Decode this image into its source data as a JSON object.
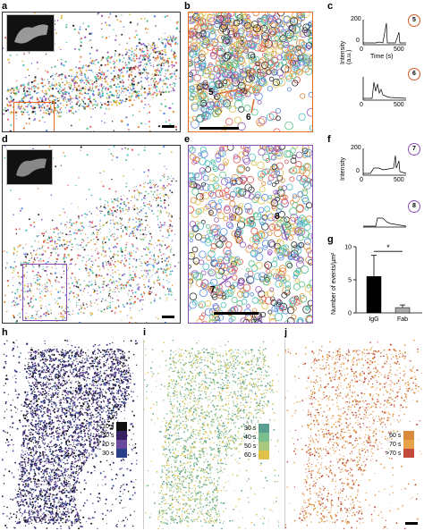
{
  "panels": {
    "a": "a",
    "b": "b",
    "c": "c",
    "d": "d",
    "e": "e",
    "f": "f",
    "g": "g",
    "h": "h",
    "i": "i",
    "j": "j"
  },
  "zoom_labels": {
    "b_event1": "5",
    "b_event2": "6",
    "e_event1": "8",
    "e_event2": "7"
  },
  "traces": {
    "c_ylabel": "Intensity\n(a.u.)",
    "c_ytick": "200",
    "c_ytick2": "0",
    "c_xticks": [
      "0",
      "500"
    ],
    "c_xlabel": "Time (s)",
    "c_trace1": "5",
    "c_trace2": "6",
    "f_ylabel": "Intensity",
    "f_ytick": "200",
    "f_ytick2": "0",
    "f_xticks": [
      "0",
      "500"
    ],
    "f_trace1": "7",
    "f_trace2": "8"
  },
  "legend_h": [
    "<10 s",
    "10 s",
    "20 s",
    "30 s"
  ],
  "legend_i": [
    "30 s",
    "40 s",
    "50 s",
    "60 s"
  ],
  "legend_j": [
    "60 s",
    "70 s",
    ">70 s"
  ],
  "colors": {
    "h": [
      "#111111",
      "#352060",
      "#6a4a9c",
      "#2a3f8a"
    ],
    "i": [
      "#5a9e8f",
      "#7bbf8f",
      "#a9c77e",
      "#e0c24a"
    ],
    "j": [
      "#d98a3a",
      "#e8a24a",
      "#c24a3a"
    ],
    "accent_orange": "#e06a2a",
    "accent_purple": "#8b4fb3"
  },
  "chart_data": {
    "type": "bar",
    "categories": [
      "IgG",
      "Fab"
    ],
    "values": [
      5.5,
      0.8
    ],
    "errors": [
      3.2,
      0.4
    ],
    "ylabel": "Number of events/µm²",
    "yticks": [
      0,
      5,
      10
    ],
    "ylim": [
      0,
      10
    ],
    "significance": "*",
    "colors": [
      "#000000",
      "#aaaaaa"
    ]
  }
}
